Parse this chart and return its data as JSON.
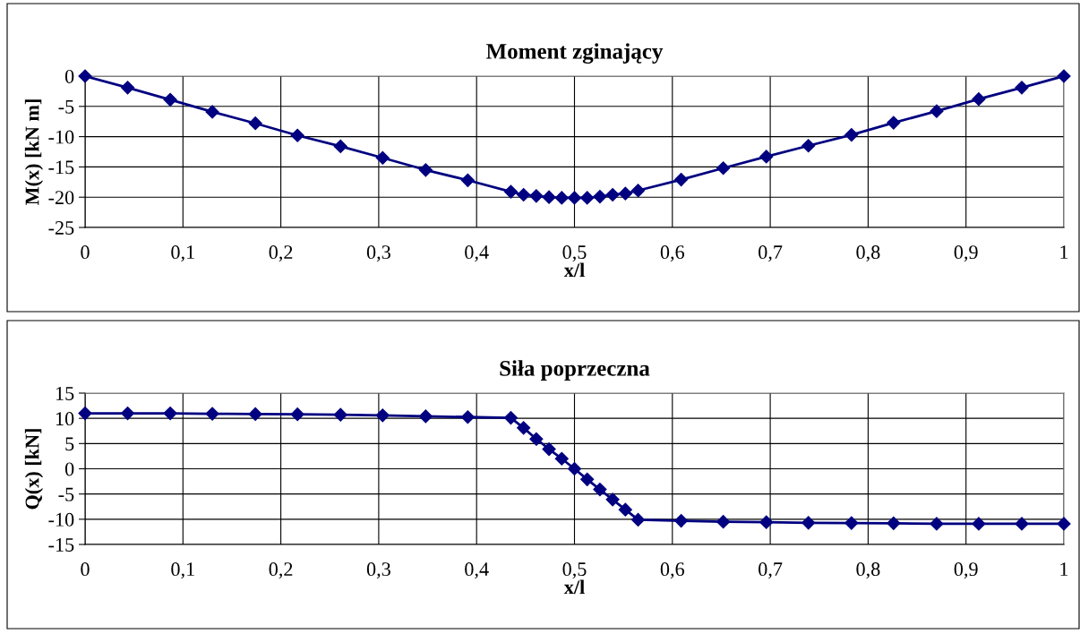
{
  "chart_data": [
    {
      "type": "line",
      "title": "Moment zginający",
      "xlabel": "x/l",
      "ylabel": "M(x) [kN m]",
      "x": [
        0,
        0.0435,
        0.087,
        0.13,
        0.174,
        0.217,
        0.261,
        0.304,
        0.348,
        0.391,
        0.435,
        0.448,
        0.461,
        0.474,
        0.487,
        0.5,
        0.513,
        0.526,
        0.539,
        0.552,
        0.565,
        0.609,
        0.652,
        0.696,
        0.739,
        0.783,
        0.826,
        0.87,
        0.913,
        0.957,
        1
      ],
      "series": [
        {
          "color": "#000080",
          "values": [
            0,
            -1.9,
            -3.9,
            -5.9,
            -7.8,
            -9.8,
            -11.6,
            -13.5,
            -15.5,
            -17.2,
            -19.1,
            -19.6,
            -19.8,
            -20.0,
            -20.1,
            -20.1,
            -20.1,
            -19.9,
            -19.6,
            -19.4,
            -18.9,
            -17.1,
            -15.2,
            -13.3,
            -11.5,
            -9.7,
            -7.7,
            -5.8,
            -3.8,
            -1.9,
            0
          ]
        }
      ],
      "xlim": [
        0,
        1
      ],
      "xticks": [
        0,
        {
          "value": 0.1,
          "label": "0,1"
        },
        {
          "value": 0.2,
          "label": "0,2"
        },
        {
          "value": 0.3,
          "label": "0,3"
        },
        {
          "value": 0.4,
          "label": "0,4"
        },
        {
          "value": 0.5,
          "label": "0,5"
        },
        {
          "value": 0.6,
          "label": "0,6"
        },
        {
          "value": 0.7,
          "label": "0,7"
        },
        {
          "value": 0.8,
          "label": "0,8"
        },
        {
          "value": 0.9,
          "label": "0,9"
        },
        1
      ],
      "ylim": [
        -25,
        0
      ],
      "yticks": [
        -25,
        -20,
        -15,
        -10,
        -5,
        0
      ],
      "grid": true,
      "marker": "diamond",
      "line_style": "solid"
    },
    {
      "type": "line",
      "title": "Siła poprzeczna",
      "xlabel": "x/l",
      "ylabel": "Q(x) [kN]",
      "x": [
        0,
        0.0435,
        0.087,
        0.13,
        0.174,
        0.217,
        0.261,
        0.304,
        0.348,
        0.391,
        0.435,
        0.448,
        0.461,
        0.474,
        0.487,
        0.5,
        0.513,
        0.526,
        0.539,
        0.552,
        0.565,
        0.609,
        0.652,
        0.696,
        0.739,
        0.783,
        0.826,
        0.87,
        0.913,
        0.957,
        1
      ],
      "series": [
        {
          "color": "#000080",
          "values": [
            11.0,
            11.0,
            11.0,
            10.9,
            10.85,
            10.8,
            10.7,
            10.6,
            10.4,
            10.25,
            10.1,
            8.1,
            5.9,
            3.9,
            2.0,
            0,
            -2.1,
            -4.1,
            -6.1,
            -8.1,
            -10.1,
            -10.3,
            -10.5,
            -10.6,
            -10.7,
            -10.75,
            -10.8,
            -10.9,
            -10.9,
            -10.9,
            -10.9
          ]
        }
      ],
      "xlim": [
        0,
        1
      ],
      "xticks": [
        0,
        {
          "value": 0.1,
          "label": "0,1"
        },
        {
          "value": 0.2,
          "label": "0,2"
        },
        {
          "value": 0.3,
          "label": "0,3"
        },
        {
          "value": 0.4,
          "label": "0,4"
        },
        {
          "value": 0.5,
          "label": "0,5"
        },
        {
          "value": 0.6,
          "label": "0,6"
        },
        {
          "value": 0.7,
          "label": "0,7"
        },
        {
          "value": 0.8,
          "label": "0,8"
        },
        {
          "value": 0.9,
          "label": "0,9"
        },
        1
      ],
      "ylim": [
        -15,
        15
      ],
      "yticks": [
        -15,
        -10,
        -5,
        0,
        5,
        10,
        15
      ],
      "grid": true,
      "marker": "diamond",
      "line_style": "solid"
    }
  ]
}
